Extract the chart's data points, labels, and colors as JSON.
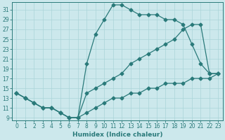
{
  "title": "",
  "xlabel": "Humidex (Indice chaleur)",
  "background_color": "#cce8ec",
  "line_color": "#2a7a7a",
  "ylim": [
    8.5,
    32.5
  ],
  "xlim": [
    -0.5,
    23.5
  ],
  "yticks": [
    9,
    11,
    13,
    15,
    17,
    19,
    21,
    23,
    25,
    27,
    29,
    31
  ],
  "xticks": [
    0,
    1,
    2,
    3,
    4,
    5,
    6,
    7,
    8,
    9,
    10,
    11,
    12,
    13,
    14,
    15,
    16,
    17,
    18,
    19,
    20,
    21,
    22,
    23
  ],
  "line1_x": [
    0,
    1,
    2,
    3,
    4,
    5,
    6,
    7,
    8,
    9,
    10,
    11,
    12,
    13,
    14,
    15,
    16,
    17,
    18,
    19,
    20,
    21,
    22,
    23
  ],
  "line1_y": [
    14,
    13,
    12,
    11,
    11,
    10,
    9,
    9,
    20,
    26,
    29,
    32,
    32,
    31,
    30,
    30,
    30,
    29,
    29,
    28,
    24,
    20,
    18,
    18
  ],
  "line2_x": [
    0,
    1,
    2,
    3,
    4,
    5,
    6,
    7,
    8,
    9,
    10,
    11,
    12,
    13,
    14,
    15,
    16,
    17,
    18,
    19,
    20,
    21,
    22,
    23
  ],
  "line2_y": [
    14,
    13,
    12,
    11,
    11,
    10,
    9,
    9,
    14,
    15,
    16,
    17,
    18,
    20,
    21,
    22,
    23,
    24,
    25,
    27,
    28,
    28,
    18,
    18
  ],
  "line3_x": [
    0,
    1,
    2,
    3,
    4,
    5,
    6,
    7,
    8,
    9,
    10,
    11,
    12,
    13,
    14,
    15,
    16,
    17,
    18,
    19,
    20,
    21,
    22,
    23
  ],
  "line3_y": [
    14,
    13,
    12,
    11,
    11,
    10,
    9,
    9,
    10,
    11,
    12,
    13,
    13,
    14,
    14,
    15,
    15,
    16,
    16,
    16,
    17,
    17,
    17,
    18
  ],
  "grid_color": "#aad4d8",
  "marker": "D",
  "markersize": 2.5,
  "linewidth": 0.9,
  "tick_labelsize": 5.5,
  "xlabel_fontsize": 6.5
}
